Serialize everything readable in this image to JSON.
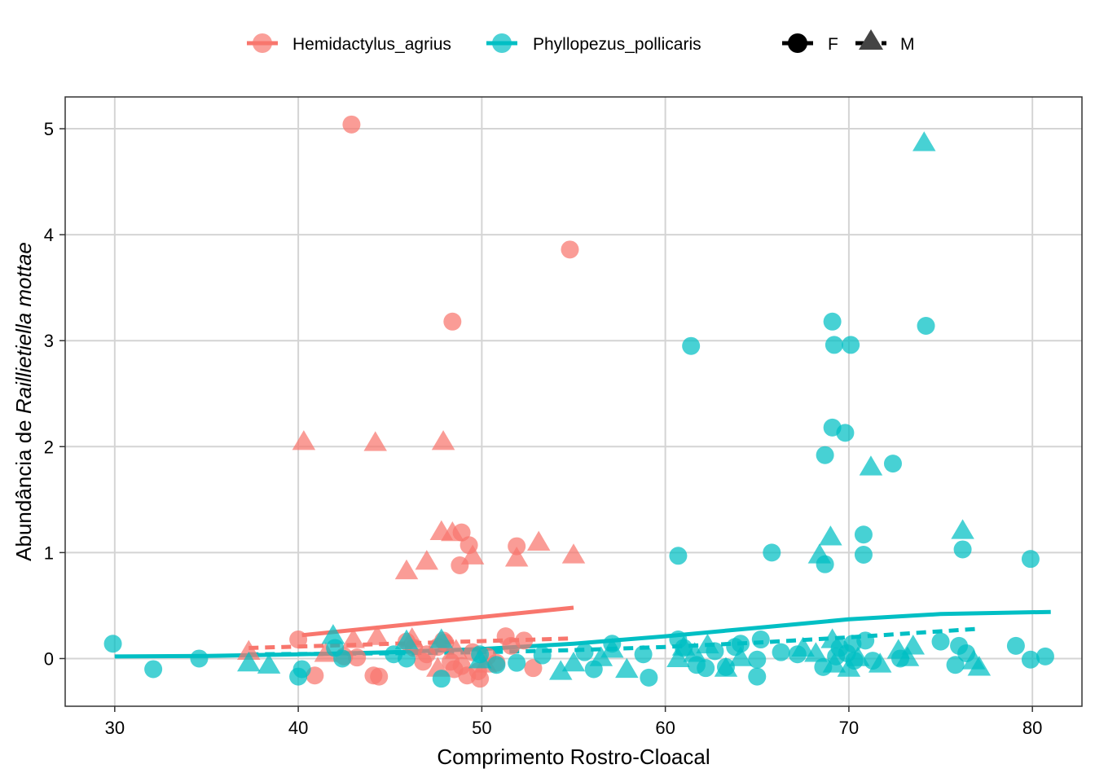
{
  "chart_data": {
    "type": "scatter",
    "title": "",
    "xlabel": "Comprimento Rostro-Cloacal",
    "ylabel_prefix": "Abundância de ",
    "ylabel_italic": "Raillietiella mottae",
    "xlim": [
      27.3,
      82.7
    ],
    "ylim": [
      -0.45,
      5.3
    ],
    "xticks": [
      30,
      40,
      50,
      60,
      70,
      80
    ],
    "yticks": [
      0,
      1,
      2,
      3,
      4,
      5
    ],
    "grid": true,
    "legend_position": "top",
    "legend": {
      "species": [
        "Hemidactylus_agrius",
        "Phyllopezus_pollicaris"
      ],
      "sex": [
        "F",
        "M"
      ]
    },
    "series_colors": {
      "Hemidactylus_agrius": "#F8766D",
      "Phyllopezus_pollicaris": "#00BFC4"
    },
    "shapes": {
      "F": "circle",
      "M": "triangle"
    },
    "trend_lines": [
      {
        "species": "Hemidactylus_agrius",
        "sex": "F",
        "style": "solid",
        "x": [
          40.2,
          55.0
        ],
        "y": [
          0.22,
          0.48
        ]
      },
      {
        "species": "Hemidactylus_agrius",
        "sex": "M",
        "style": "dashed",
        "x": [
          37.3,
          55.0
        ],
        "y": [
          0.1,
          0.19
        ]
      },
      {
        "species": "Phyllopezus_pollicaris",
        "sex": "F",
        "style": "solid",
        "x": [
          30,
          35,
          40,
          45,
          50,
          55,
          60,
          65,
          70,
          75,
          81
        ],
        "y": [
          0.02,
          0.025,
          0.04,
          0.06,
          0.09,
          0.14,
          0.21,
          0.29,
          0.37,
          0.42,
          0.44
        ]
      },
      {
        "species": "Phyllopezus_pollicaris",
        "sex": "M",
        "style": "dashed",
        "x": [
          37.3,
          45,
          50,
          55,
          60,
          65,
          70,
          77
        ],
        "y": [
          0.04,
          0.05,
          0.06,
          0.08,
          0.11,
          0.15,
          0.2,
          0.28
        ]
      }
    ],
    "points": {
      "Hemidactylus_agrius": {
        "F": [
          [
            42.9,
            5.04
          ],
          [
            54.8,
            3.86
          ],
          [
            48.4,
            3.18
          ],
          [
            48.9,
            1.19
          ],
          [
            49.3,
            1.07
          ],
          [
            48.8,
            0.88
          ],
          [
            51.9,
            1.06
          ],
          [
            40.0,
            0.18
          ],
          [
            40.9,
            -0.16
          ],
          [
            42.5,
            0.02
          ],
          [
            43.2,
            0.01
          ],
          [
            44.1,
            -0.16
          ],
          [
            44.4,
            -0.17
          ],
          [
            45.9,
            0.16
          ],
          [
            46.3,
            0.1
          ],
          [
            47.0,
            0.04
          ],
          [
            47.6,
            0.11
          ],
          [
            48.0,
            0.15
          ],
          [
            48.3,
            -0.03
          ],
          [
            48.5,
            -0.1
          ],
          [
            48.9,
            -0.07
          ],
          [
            49.2,
            -0.16
          ],
          [
            49.8,
            -0.12
          ],
          [
            49.9,
            -0.19
          ],
          [
            50.3,
            0.02
          ],
          [
            50.8,
            -0.04
          ],
          [
            51.3,
            0.21
          ],
          [
            51.6,
            0.12
          ],
          [
            52.3,
            0.17
          ],
          [
            52.8,
            -0.09
          ],
          [
            47.9,
            0.17
          ],
          [
            49.5,
            0.06
          ],
          [
            46.8,
            -0.03
          ]
        ],
        "M": [
          [
            40.3,
            2.04
          ],
          [
            44.2,
            2.03
          ],
          [
            47.9,
            2.04
          ],
          [
            47.8,
            1.19
          ],
          [
            48.4,
            1.18
          ],
          [
            49.5,
            0.96
          ],
          [
            51.9,
            0.94
          ],
          [
            53.1,
            1.09
          ],
          [
            55.0,
            0.97
          ],
          [
            45.9,
            0.82
          ],
          [
            47.0,
            0.91
          ],
          [
            37.3,
            0.06
          ],
          [
            41.5,
            0.04
          ],
          [
            43.0,
            0.17
          ],
          [
            44.3,
            0.2
          ],
          [
            46.2,
            0.18
          ],
          [
            47.6,
            -0.1
          ],
          [
            48.6,
            0.07
          ],
          [
            50.2,
            -0.06
          ]
        ]
      },
      "Phyllopezus_pollicaris": {
        "F": [
          [
            29.9,
            0.14
          ],
          [
            32.1,
            -0.1
          ],
          [
            34.6,
            0.0
          ],
          [
            40.0,
            -0.17
          ],
          [
            40.2,
            -0.1
          ],
          [
            42.0,
            0.1
          ],
          [
            42.4,
            0.0
          ],
          [
            45.2,
            0.04
          ],
          [
            45.9,
            0.0
          ],
          [
            47.8,
            -0.19
          ],
          [
            49.9,
            0.04
          ],
          [
            50.8,
            -0.06
          ],
          [
            51.9,
            -0.04
          ],
          [
            53.3,
            0.03
          ],
          [
            55.6,
            0.06
          ],
          [
            56.1,
            -0.1
          ],
          [
            57.1,
            0.14
          ],
          [
            58.8,
            0.04
          ],
          [
            59.1,
            -0.18
          ],
          [
            61.4,
            2.95
          ],
          [
            60.7,
            0.97
          ],
          [
            60.7,
            0.18
          ],
          [
            61.0,
            0.1
          ],
          [
            61.7,
            -0.06
          ],
          [
            62.2,
            -0.09
          ],
          [
            62.7,
            0.07
          ],
          [
            63.3,
            -0.08
          ],
          [
            63.8,
            0.11
          ],
          [
            64.1,
            0.14
          ],
          [
            65.0,
            -0.01
          ],
          [
            65.0,
            -0.17
          ],
          [
            65.2,
            0.18
          ],
          [
            65.8,
            1.0
          ],
          [
            66.3,
            0.06
          ],
          [
            67.2,
            0.04
          ],
          [
            68.6,
            -0.08
          ],
          [
            68.7,
            1.92
          ],
          [
            69.1,
            3.18
          ],
          [
            69.1,
            2.18
          ],
          [
            69.2,
            2.96
          ],
          [
            69.8,
            2.13
          ],
          [
            70.1,
            2.96
          ],
          [
            68.7,
            0.89
          ],
          [
            70.8,
            1.17
          ],
          [
            70.8,
            0.98
          ],
          [
            69.5,
            0.1
          ],
          [
            69.9,
            0.05
          ],
          [
            70.2,
            0.14
          ],
          [
            70.9,
            0.17
          ],
          [
            71.3,
            -0.02
          ],
          [
            72.4,
            1.84
          ],
          [
            72.8,
            0.0
          ],
          [
            74.2,
            3.14
          ],
          [
            75.0,
            0.16
          ],
          [
            75.8,
            -0.06
          ],
          [
            76.0,
            0.12
          ],
          [
            76.2,
            1.03
          ],
          [
            76.4,
            0.05
          ],
          [
            79.1,
            0.12
          ],
          [
            79.9,
            0.94
          ],
          [
            79.9,
            -0.01
          ],
          [
            80.7,
            0.02
          ],
          [
            69.3,
            0.02
          ],
          [
            70.3,
            -0.02
          ]
        ],
        "M": [
          [
            37.3,
            -0.05
          ],
          [
            38.4,
            -0.07
          ],
          [
            41.9,
            0.21
          ],
          [
            45.9,
            0.16
          ],
          [
            47.8,
            0.17
          ],
          [
            49.9,
            -0.02
          ],
          [
            54.3,
            -0.13
          ],
          [
            55.0,
            -0.05
          ],
          [
            56.5,
            0.0
          ],
          [
            57.1,
            0.08
          ],
          [
            57.9,
            -0.11
          ],
          [
            60.7,
            -0.01
          ],
          [
            61.0,
            0.1
          ],
          [
            61.6,
            0.04
          ],
          [
            62.3,
            0.12
          ],
          [
            63.3,
            -0.1
          ],
          [
            64.1,
            0.0
          ],
          [
            67.5,
            0.09
          ],
          [
            68.4,
            0.97
          ],
          [
            69.0,
            1.14
          ],
          [
            69.1,
            0.17
          ],
          [
            69.2,
            -0.06
          ],
          [
            70.0,
            -0.1
          ],
          [
            71.2,
            1.8
          ],
          [
            71.7,
            -0.06
          ],
          [
            72.7,
            0.07
          ],
          [
            73.2,
            0.0
          ],
          [
            73.5,
            0.11
          ],
          [
            74.1,
            4.86
          ],
          [
            76.2,
            1.2
          ],
          [
            76.8,
            -0.03
          ],
          [
            77.1,
            -0.09
          ],
          [
            70.5,
            0.0
          ],
          [
            68.2,
            0.04
          ]
        ]
      }
    }
  }
}
